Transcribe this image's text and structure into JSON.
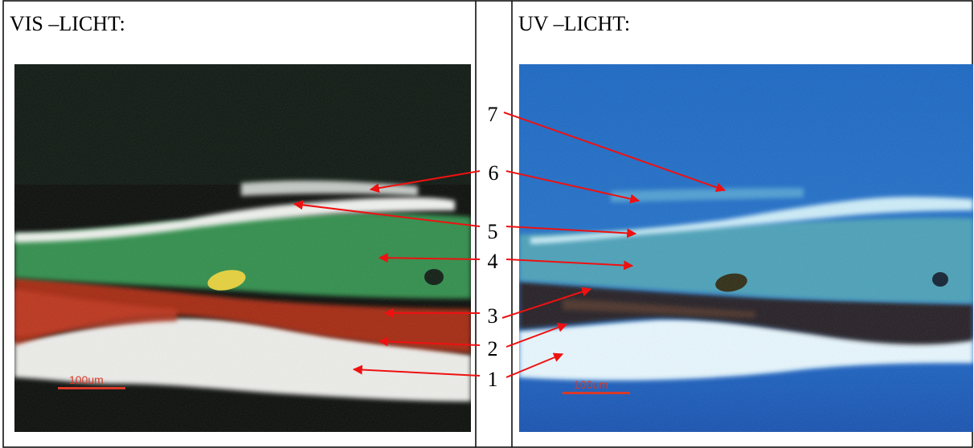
{
  "panels": {
    "vis": {
      "title": "VIS –LICHT:",
      "scale_label": "100um"
    },
    "uv": {
      "title": "UV –LICHT:",
      "scale_label": "100um"
    }
  },
  "layers": [
    {
      "number": "1"
    },
    {
      "number": "2"
    },
    {
      "number": "3"
    },
    {
      "number": "4"
    },
    {
      "number": "5"
    },
    {
      "number": "6"
    },
    {
      "number": "7"
    }
  ],
  "colors": {
    "arrow": "#ee1111",
    "vis_background": "#060906",
    "vis_green_layer": "#2f8d4a",
    "vis_red_layer": "#a4260f",
    "vis_white_layer": "#ededea",
    "uv_background": "#1a5fb6",
    "uv_teal_layer": "#4aa0b8",
    "uv_dark_layer": "#231a22",
    "uv_white_layer": "#e8f8ff"
  }
}
